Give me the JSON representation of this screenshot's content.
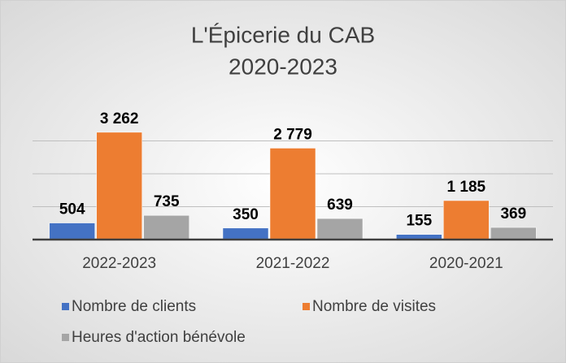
{
  "chart_data": {
    "type": "bar",
    "title": "L'Épicerie du CAB",
    "subtitle": "2020-2023",
    "categories": [
      "2022-2023",
      "2021-2022",
      "2020-2021"
    ],
    "series": [
      {
        "name": "Nombre de clients",
        "color": "#4472c4",
        "values": [
          504,
          350,
          155
        ],
        "value_labels": [
          "504",
          "350",
          "155"
        ]
      },
      {
        "name": "Nombre de visites",
        "color": "#ed7d31",
        "values": [
          3262,
          2779,
          1185
        ],
        "value_labels": [
          "3 262",
          "2 779",
          "1 185"
        ]
      },
      {
        "name": "Heures d'action bénévole",
        "color": "#a5a5a5",
        "values": [
          735,
          639,
          369
        ],
        "value_labels": [
          "735",
          "639",
          "369"
        ]
      }
    ],
    "ylim": [
      0,
      4000
    ],
    "yticks": [
      0,
      1000,
      2000,
      3000
    ],
    "grid": true,
    "legend": "bottom"
  }
}
